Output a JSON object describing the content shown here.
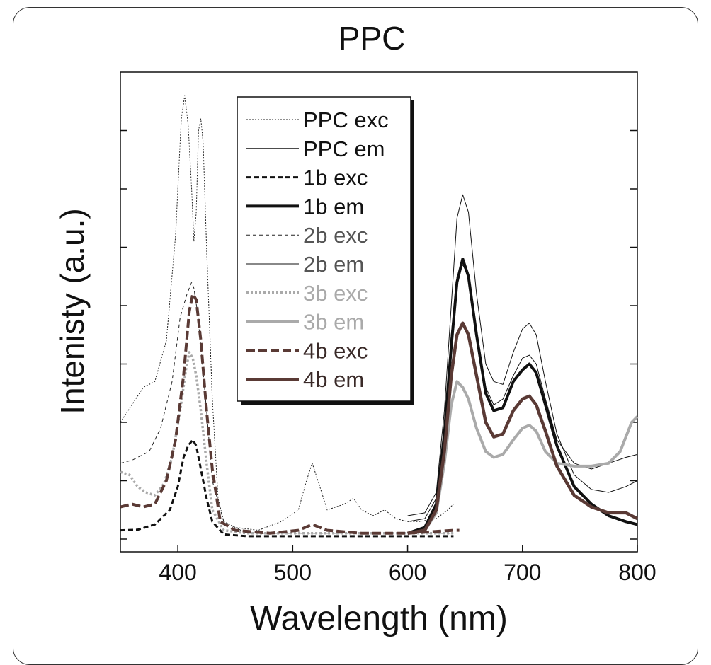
{
  "chart_data": {
    "type": "line",
    "title": "PPC",
    "xlabel": "Wavelength (nm)",
    "ylabel": "Intenisty (a.u.)",
    "xlim": [
      350,
      800
    ],
    "ylim": [
      0,
      8
    ],
    "xticks": [
      "400",
      "500",
      "600",
      "700",
      "800"
    ],
    "grid": false,
    "legend_position": "top-center",
    "series": [
      {
        "name": "PPC exc",
        "color": "#222222",
        "dash": "2,2",
        "width": 1,
        "points": [
          [
            350,
            2.0
          ],
          [
            360,
            2.3
          ],
          [
            370,
            2.6
          ],
          [
            380,
            2.7
          ],
          [
            390,
            3.4
          ],
          [
            398,
            5.2
          ],
          [
            403,
            7.2
          ],
          [
            406,
            7.6
          ],
          [
            409,
            7.1
          ],
          [
            412,
            6.0
          ],
          [
            414,
            5.1
          ],
          [
            416,
            5.6
          ],
          [
            418,
            7.0
          ],
          [
            420,
            7.2
          ],
          [
            422,
            6.8
          ],
          [
            425,
            5.0
          ],
          [
            430,
            2.4
          ],
          [
            435,
            0.7
          ],
          [
            440,
            0.3
          ],
          [
            450,
            0.2
          ],
          [
            470,
            0.15
          ],
          [
            490,
            0.3
          ],
          [
            505,
            0.5
          ],
          [
            512,
            1.0
          ],
          [
            517,
            1.3
          ],
          [
            522,
            1.0
          ],
          [
            530,
            0.5
          ],
          [
            545,
            0.6
          ],
          [
            553,
            0.7
          ],
          [
            560,
            0.5
          ],
          [
            570,
            0.4
          ],
          [
            580,
            0.5
          ],
          [
            590,
            0.35
          ],
          [
            600,
            0.3
          ],
          [
            610,
            0.3
          ],
          [
            625,
            0.35
          ],
          [
            635,
            0.5
          ],
          [
            640,
            0.6
          ],
          [
            645,
            0.6
          ]
        ]
      },
      {
        "name": "PPC em",
        "color": "#111111",
        "dash": "",
        "width": 1,
        "points": [
          [
            600,
            0.4
          ],
          [
            615,
            0.45
          ],
          [
            625,
            0.8
          ],
          [
            632,
            2.2
          ],
          [
            638,
            4.0
          ],
          [
            643,
            5.5
          ],
          [
            648,
            5.9
          ],
          [
            653,
            5.6
          ],
          [
            660,
            4.2
          ],
          [
            668,
            3.0
          ],
          [
            675,
            2.7
          ],
          [
            683,
            2.65
          ],
          [
            692,
            3.2
          ],
          [
            700,
            3.6
          ],
          [
            706,
            3.7
          ],
          [
            712,
            3.5
          ],
          [
            720,
            2.7
          ],
          [
            730,
            1.8
          ],
          [
            745,
            1.1
          ],
          [
            760,
            0.85
          ],
          [
            775,
            0.8
          ],
          [
            790,
            0.9
          ],
          [
            800,
            1.0
          ]
        ]
      },
      {
        "name": "1b exc",
        "color": "#111111",
        "dash": "7,4",
        "width": 3,
        "points": [
          [
            350,
            0.15
          ],
          [
            365,
            0.16
          ],
          [
            380,
            0.25
          ],
          [
            393,
            0.5
          ],
          [
            400,
            0.9
          ],
          [
            405,
            1.4
          ],
          [
            409,
            1.6
          ],
          [
            413,
            1.7
          ],
          [
            416,
            1.6
          ],
          [
            420,
            1.2
          ],
          [
            425,
            0.7
          ],
          [
            430,
            0.3
          ],
          [
            440,
            0.08
          ],
          [
            460,
            0.05
          ],
          [
            500,
            0.05
          ],
          [
            550,
            0.05
          ],
          [
            600,
            0.05
          ],
          [
            640,
            0.05
          ]
        ]
      },
      {
        "name": "1b em",
        "color": "#111111",
        "dash": "",
        "width": 4,
        "points": [
          [
            600,
            0.1
          ],
          [
            615,
            0.2
          ],
          [
            625,
            0.6
          ],
          [
            632,
            1.8
          ],
          [
            638,
            3.3
          ],
          [
            643,
            4.4
          ],
          [
            648,
            4.8
          ],
          [
            653,
            4.5
          ],
          [
            660,
            3.5
          ],
          [
            668,
            2.5
          ],
          [
            675,
            2.2
          ],
          [
            683,
            2.25
          ],
          [
            692,
            2.7
          ],
          [
            700,
            2.9
          ],
          [
            706,
            3.0
          ],
          [
            712,
            2.85
          ],
          [
            720,
            2.3
          ],
          [
            730,
            1.6
          ],
          [
            745,
            0.9
          ],
          [
            760,
            0.6
          ],
          [
            775,
            0.4
          ],
          [
            790,
            0.3
          ],
          [
            800,
            0.25
          ]
        ]
      },
      {
        "name": "2b exc",
        "color": "#222222",
        "dash": "5,4",
        "width": 1,
        "points": [
          [
            350,
            1.3
          ],
          [
            360,
            1.35
          ],
          [
            375,
            1.5
          ],
          [
            385,
            1.9
          ],
          [
            395,
            2.7
          ],
          [
            402,
            3.8
          ],
          [
            408,
            4.2
          ],
          [
            412,
            4.4
          ],
          [
            414,
            4.3
          ],
          [
            417,
            3.9
          ],
          [
            420,
            3.3
          ],
          [
            425,
            2.2
          ],
          [
            430,
            1.0
          ],
          [
            440,
            0.3
          ],
          [
            460,
            0.1
          ],
          [
            500,
            0.1
          ],
          [
            550,
            0.1
          ],
          [
            600,
            0.1
          ],
          [
            640,
            0.1
          ]
        ]
      },
      {
        "name": "2b em",
        "color": "#111111",
        "dash": "",
        "width": 1,
        "points": [
          [
            600,
            0.3
          ],
          [
            615,
            0.35
          ],
          [
            625,
            0.7
          ],
          [
            632,
            1.9
          ],
          [
            638,
            3.5
          ],
          [
            643,
            4.5
          ],
          [
            648,
            4.7
          ],
          [
            653,
            4.5
          ],
          [
            660,
            3.5
          ],
          [
            668,
            2.6
          ],
          [
            675,
            2.3
          ],
          [
            683,
            2.4
          ],
          [
            692,
            2.8
          ],
          [
            700,
            3.1
          ],
          [
            706,
            3.15
          ],
          [
            712,
            3.0
          ],
          [
            720,
            2.4
          ],
          [
            730,
            1.7
          ],
          [
            745,
            1.3
          ],
          [
            760,
            1.2
          ],
          [
            775,
            1.3
          ],
          [
            790,
            1.4
          ],
          [
            800,
            1.45
          ]
        ]
      },
      {
        "name": "3b exc",
        "color": "#aaaaaa",
        "dash": "3,3",
        "width": 3.5,
        "points": [
          [
            350,
            1.15
          ],
          [
            358,
            1.1
          ],
          [
            365,
            0.9
          ],
          [
            372,
            0.8
          ],
          [
            380,
            0.75
          ],
          [
            388,
            0.95
          ],
          [
            395,
            1.4
          ],
          [
            402,
            2.2
          ],
          [
            407,
            2.9
          ],
          [
            410,
            3.2
          ],
          [
            413,
            3.1
          ],
          [
            416,
            2.8
          ],
          [
            420,
            2.2
          ],
          [
            425,
            1.3
          ],
          [
            430,
            0.5
          ],
          [
            440,
            0.15
          ],
          [
            460,
            0.1
          ],
          [
            520,
            0.1
          ],
          [
            580,
            0.1
          ],
          [
            640,
            0.1
          ]
        ]
      },
      {
        "name": "3b em",
        "color": "#aaaaaa",
        "dash": "",
        "width": 4,
        "points": [
          [
            600,
            0.1
          ],
          [
            615,
            0.15
          ],
          [
            625,
            0.45
          ],
          [
            632,
            1.3
          ],
          [
            638,
            2.3
          ],
          [
            643,
            2.7
          ],
          [
            648,
            2.6
          ],
          [
            653,
            2.4
          ],
          [
            660,
            1.9
          ],
          [
            668,
            1.5
          ],
          [
            675,
            1.4
          ],
          [
            683,
            1.45
          ],
          [
            692,
            1.7
          ],
          [
            700,
            1.9
          ],
          [
            706,
            1.95
          ],
          [
            712,
            1.85
          ],
          [
            720,
            1.5
          ],
          [
            730,
            1.3
          ],
          [
            745,
            1.25
          ],
          [
            760,
            1.25
          ],
          [
            775,
            1.3
          ],
          [
            785,
            1.5
          ],
          [
            795,
            2.0
          ],
          [
            800,
            2.1
          ]
        ]
      },
      {
        "name": "4b exc",
        "color": "#5a3a35",
        "dash": "12,5",
        "width": 4,
        "points": [
          [
            350,
            0.55
          ],
          [
            360,
            0.6
          ],
          [
            370,
            0.55
          ],
          [
            380,
            0.6
          ],
          [
            390,
            1.0
          ],
          [
            398,
            1.7
          ],
          [
            405,
            2.8
          ],
          [
            410,
            3.9
          ],
          [
            413,
            4.2
          ],
          [
            416,
            4.1
          ],
          [
            420,
            3.4
          ],
          [
            425,
            2.2
          ],
          [
            430,
            1.2
          ],
          [
            437,
            0.3
          ],
          [
            450,
            0.15
          ],
          [
            480,
            0.1
          ],
          [
            505,
            0.15
          ],
          [
            517,
            0.25
          ],
          [
            530,
            0.15
          ],
          [
            560,
            0.1
          ],
          [
            600,
            0.1
          ],
          [
            640,
            0.15
          ],
          [
            645,
            0.15
          ]
        ]
      },
      {
        "name": "4b em",
        "color": "#5a3a35",
        "dash": "",
        "width": 4.5,
        "points": [
          [
            600,
            0.1
          ],
          [
            615,
            0.15
          ],
          [
            625,
            0.5
          ],
          [
            632,
            1.5
          ],
          [
            638,
            2.8
          ],
          [
            643,
            3.5
          ],
          [
            648,
            3.7
          ],
          [
            653,
            3.5
          ],
          [
            660,
            2.8
          ],
          [
            668,
            2.0
          ],
          [
            675,
            1.75
          ],
          [
            683,
            1.8
          ],
          [
            692,
            2.2
          ],
          [
            700,
            2.4
          ],
          [
            706,
            2.45
          ],
          [
            712,
            2.3
          ],
          [
            720,
            1.85
          ],
          [
            730,
            1.25
          ],
          [
            745,
            0.75
          ],
          [
            760,
            0.55
          ],
          [
            775,
            0.45
          ],
          [
            790,
            0.45
          ],
          [
            800,
            0.35
          ]
        ]
      }
    ]
  }
}
